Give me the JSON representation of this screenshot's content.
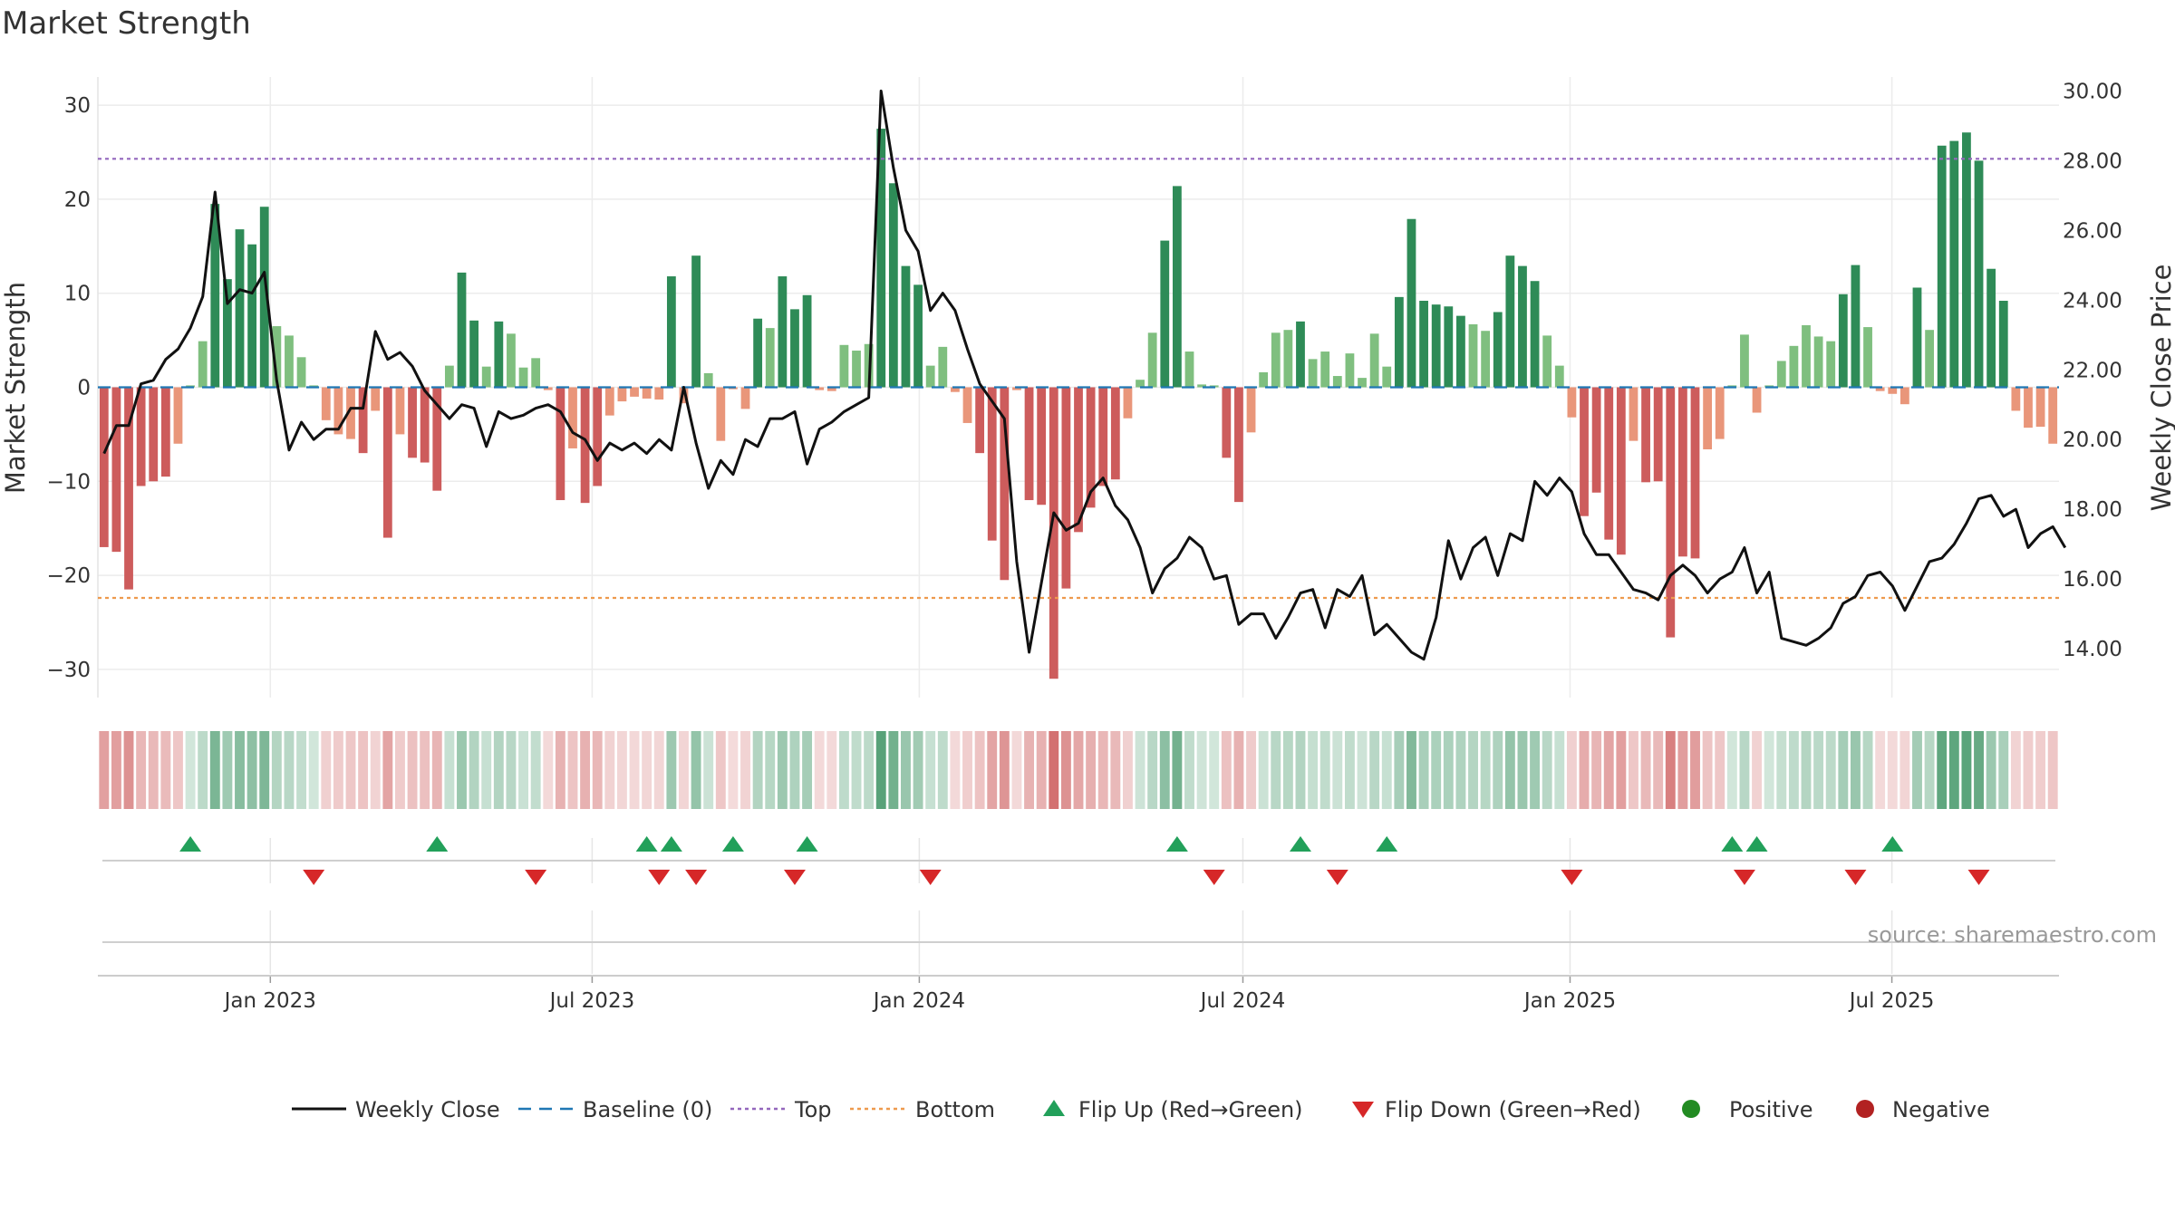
{
  "chart_data": {
    "type": "bar",
    "title": "Market Strength",
    "ylabel": "Market Strength",
    "y2label": "Weekly Close Price",
    "ylim": [
      -33,
      33
    ],
    "y2lim": [
      12.6,
      30.4
    ],
    "yticks": [
      30,
      20,
      10,
      0,
      -10,
      -20,
      -30
    ],
    "yticklabels": [
      "30",
      "20",
      "10",
      "0",
      "−10",
      "−20",
      "−30"
    ],
    "y2ticks": [
      30,
      28,
      26,
      24,
      22,
      20,
      18,
      16,
      14
    ],
    "y2ticklabels": [
      "30.00",
      "28.00",
      "26.00",
      "24.00",
      "22.00",
      "20.00",
      "18.00",
      "16.00",
      "14.00"
    ],
    "x_start": "2022-09-26",
    "x_end": "2025-10-03",
    "xticks": [
      "2023-01-01",
      "2023-07-01",
      "2024-01-01",
      "2024-07-01",
      "2025-01-01",
      "2025-07-01"
    ],
    "xticklabels": [
      "Jan 2023",
      "Jul 2023",
      "Jan 2024",
      "Jul 2024",
      "Jan 2025",
      "Jul 2025"
    ],
    "top_line": 24.3,
    "bottom_line": -22.4,
    "baseline": 0,
    "grid": true,
    "legend_position": "bottom-center",
    "source": "source: sharemaestro.com",
    "strength": [
      -17,
      -17.5,
      -21.5,
      -10.5,
      -10,
      -9.5,
      -6,
      0.2,
      4.9,
      19.5,
      11.5,
      16.8,
      15.2,
      19.2,
      6.5,
      5.5,
      3.2,
      0.2,
      -3.5,
      -5,
      -5.5,
      -7,
      -2.5,
      -16,
      -5,
      -7.5,
      -8,
      -11,
      2.3,
      12.2,
      7.1,
      2.2,
      7,
      5.7,
      2.1,
      3.1,
      -0.3,
      -12,
      -6.5,
      -12.3,
      -10.5,
      -3,
      -1.5,
      -1,
      -1.2,
      -1.3,
      11.8,
      -1.7,
      14,
      1.5,
      -5.7,
      -0.2,
      -2.3,
      7.3,
      6.3,
      11.8,
      8.3,
      9.8,
      -0.3,
      -0.4,
      4.5,
      3.9,
      4.6,
      27.5,
      21.7,
      12.9,
      10.9,
      2.3,
      4.3,
      -0.5,
      -3.8,
      -7,
      -16.3,
      -20.5,
      -0.3,
      -12,
      -12.5,
      -31,
      -21.4,
      -15.4,
      -12.8,
      -10.5,
      -9.8,
      -3.3,
      0.8,
      5.8,
      15.6,
      21.4,
      3.8,
      0.3,
      0.2,
      -7.5,
      -12.2,
      -4.8,
      1.6,
      5.8,
      6.1,
      7,
      3,
      3.8,
      1.2,
      3.6,
      1,
      5.7,
      2.2,
      9.6,
      17.9,
      9.2,
      8.8,
      8.6,
      7.6,
      6.7,
      6,
      8,
      14,
      12.9,
      11.3,
      5.5,
      2.3,
      -3.2,
      -13.7,
      -11.2,
      -16.2,
      -17.8,
      -5.7,
      -10.1,
      -10,
      -26.6,
      -18,
      -18.2,
      -6.6,
      -5.5,
      0.2,
      5.6,
      -2.7,
      0.2,
      2.8,
      4.4,
      6.6,
      5.4,
      4.9,
      9.9,
      13,
      6.4,
      -0.4,
      -0.7,
      -1.8,
      10.6,
      6.1,
      25.7,
      26.2,
      27.1,
      24.1,
      12.6,
      9.2,
      -2.5,
      -4.3,
      -4.2,
      -6
    ],
    "close": [
      19.6,
      20.4,
      20.4,
      21.6,
      21.7,
      22.3,
      22.6,
      23.2,
      24.1,
      27.1,
      23.9,
      24.3,
      24.2,
      24.8,
      21.7,
      19.7,
      20.5,
      20.0,
      20.3,
      20.3,
      20.9,
      20.9,
      23.1,
      22.3,
      22.5,
      22.1,
      21.4,
      21.0,
      20.6,
      21.0,
      20.9,
      19.8,
      20.8,
      20.6,
      20.7,
      20.9,
      21.0,
      20.8,
      20.2,
      20.0,
      19.4,
      19.9,
      19.7,
      19.9,
      19.6,
      20.0,
      19.7,
      21.5,
      19.9,
      18.6,
      19.4,
      19.0,
      20.0,
      19.8,
      20.6,
      20.6,
      20.8,
      19.3,
      20.3,
      20.5,
      20.8,
      21.0,
      21.2,
      30.0,
      27.8,
      26.0,
      25.4,
      23.7,
      24.2,
      23.7,
      22.6,
      21.6,
      21.1,
      20.6,
      16.5,
      13.9,
      15.9,
      17.9,
      17.4,
      17.6,
      18.5,
      18.9,
      18.1,
      17.7,
      16.9,
      15.6,
      16.3,
      16.6,
      17.2,
      16.9,
      16.0,
      16.1,
      14.7,
      15.0,
      15.0,
      14.3,
      14.9,
      15.6,
      15.7,
      14.6,
      15.7,
      15.5,
      16.1,
      14.4,
      14.7,
      14.3,
      13.9,
      13.7,
      14.9,
      17.1,
      16.0,
      16.9,
      17.2,
      16.1,
      17.3,
      17.1,
      18.8,
      18.4,
      18.9,
      18.5,
      17.3,
      16.7,
      16.7,
      16.2,
      15.7,
      15.6,
      15.4,
      16.1,
      16.4,
      16.1,
      15.6,
      16.0,
      16.2,
      16.9,
      15.6,
      16.2,
      14.3,
      14.2,
      14.1,
      14.3,
      14.6,
      15.3,
      15.5,
      16.1,
      16.2,
      15.8,
      15.1,
      15.8,
      16.5,
      16.6,
      17.0,
      17.6,
      18.3,
      18.4,
      17.8,
      18.0,
      16.9,
      17.3,
      17.5,
      16.9
    ],
    "flip_up_weeks": [
      7,
      27,
      44,
      46,
      51,
      57,
      87,
      97,
      104,
      132,
      134,
      145
    ],
    "flip_down_weeks": [
      17,
      35,
      45,
      48,
      56,
      67,
      90,
      100,
      119,
      133,
      142,
      152
    ]
  },
  "legend": [
    {
      "label": "Weekly Close",
      "kind": "solid-line",
      "color": "#111111"
    },
    {
      "label": "Baseline (0)",
      "kind": "dashed-line",
      "color": "#1f77b4"
    },
    {
      "label": "Top",
      "kind": "dotted-line",
      "color": "#9467bd"
    },
    {
      "label": "Bottom",
      "kind": "dotted-line",
      "color": "#ee9a4d"
    },
    {
      "label": "Flip Up (Red→Green)",
      "kind": "triangle-up",
      "color": "#22a05a"
    },
    {
      "label": "Flip Down (Green→Red)",
      "kind": "triangle-down",
      "color": "#d62728"
    },
    {
      "label": "Positive",
      "kind": "dot",
      "color": "#228b22"
    },
    {
      "label": "Negative",
      "kind": "dot",
      "color": "#b22222"
    }
  ],
  "colors": {
    "strong_positive": "#2e8b57",
    "weak_positive": "#7fbf7f",
    "strong_negative": "#cd5c5c",
    "weak_negative": "#e9967a",
    "close_line": "#111111",
    "top_line": "#9467bd",
    "bottom_line": "#ee9a4d",
    "baseline": "#1f77b4"
  }
}
